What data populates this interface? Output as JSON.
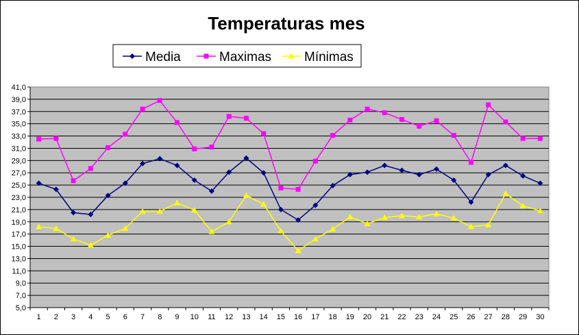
{
  "chart_data": {
    "type": "line",
    "title": "Temperaturas mes",
    "xlabel": "",
    "ylabel": "",
    "categories": [
      "1",
      "2",
      "3",
      "4",
      "5",
      "6",
      "7",
      "8",
      "9",
      "10",
      "11",
      "12",
      "13",
      "14",
      "15",
      "16",
      "17",
      "18",
      "19",
      "20",
      "21",
      "22",
      "23",
      "24",
      "25",
      "26",
      "27",
      "28",
      "29",
      "30"
    ],
    "ylim": [
      5.0,
      41.0
    ],
    "yticks": [
      "5,0",
      "7,0",
      "9,0",
      "11,0",
      "13,0",
      "15,0",
      "17,0",
      "19,0",
      "21,0",
      "23,0",
      "25,0",
      "27,0",
      "29,0",
      "31,0",
      "33,0",
      "35,0",
      "37,0",
      "39,0",
      "41,0"
    ],
    "grid": true,
    "plot_background": "#c0c0c0",
    "legend_position": "top",
    "series": [
      {
        "name": "Media",
        "color": "#000080",
        "marker": "diamond",
        "values": [
          25.3,
          24.3,
          20.5,
          20.2,
          23.3,
          25.3,
          28.5,
          29.3,
          28.2,
          25.8,
          24.0,
          27.1,
          29.4,
          27.0,
          21.0,
          19.3,
          21.7,
          24.9,
          26.7,
          27.1,
          28.2,
          27.4,
          26.7,
          27.6,
          25.8,
          22.2,
          26.7,
          28.2,
          26.5,
          25.3
        ]
      },
      {
        "name": "Maximas",
        "color": "#ff00ff",
        "marker": "square",
        "values": [
          32.5,
          32.6,
          25.7,
          27.7,
          31.1,
          33.3,
          37.4,
          38.8,
          35.2,
          30.9,
          31.2,
          36.2,
          35.9,
          33.4,
          24.5,
          24.3,
          28.9,
          33.1,
          35.6,
          37.4,
          36.8,
          35.7,
          34.6,
          35.5,
          33.1,
          28.7,
          38.1,
          35.3,
          32.6,
          32.6
        ]
      },
      {
        "name": "Mínimas",
        "color": "#ffff00",
        "marker": "triangle",
        "values": [
          18.2,
          17.9,
          16.2,
          15.2,
          16.8,
          17.9,
          20.7,
          20.7,
          22.1,
          20.9,
          17.4,
          19.0,
          23.3,
          21.9,
          17.5,
          14.3,
          16.2,
          17.8,
          19.8,
          18.7,
          19.7,
          20.0,
          19.8,
          20.3,
          19.6,
          18.2,
          18.5,
          23.6,
          21.6,
          20.8
        ]
      }
    ]
  }
}
